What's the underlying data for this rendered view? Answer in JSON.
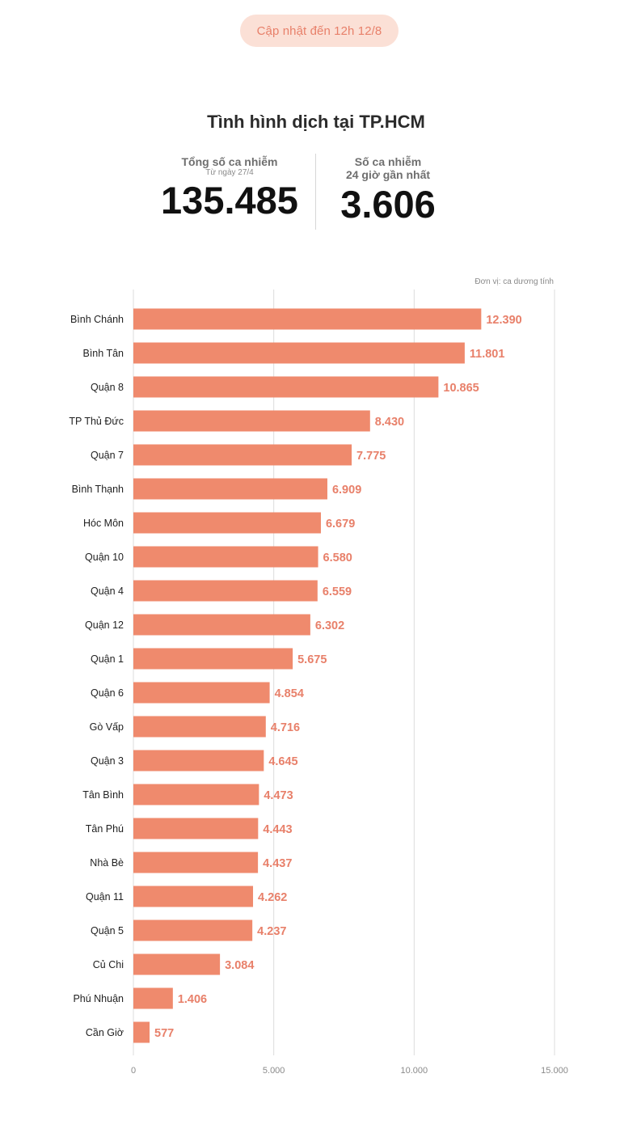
{
  "header": {
    "update_label": "Cập nhật đến  12h 12/8",
    "title": "Tình hình dịch tại TP.HCM"
  },
  "stats": {
    "total_label": "Tổng số ca nhiễm",
    "total_sub": "Từ ngày 27/4",
    "total_value": "135.485",
    "recent_label_line1": "Số ca nhiễm",
    "recent_label_line2": "24 giờ gần nhất",
    "recent_value": "3.606"
  },
  "unit_note": "Đơn vị: ca dương tính",
  "colors": {
    "bar": "#ef8a6d",
    "value_label": "#e8806a",
    "pill_bg": "#fbe0d6",
    "grid": "#dcdcdc"
  },
  "chart_data": {
    "type": "bar",
    "orientation": "horizontal",
    "categories": [
      "Bình Chánh",
      "Bình Tân",
      "Quận 8",
      "TP Thủ Đức",
      "Quận 7",
      "Bình Thạnh",
      "Hóc Môn",
      "Quận 10",
      "Quận 4",
      "Quận 12",
      "Quận 1",
      "Quận 6",
      "Gò Vấp",
      "Quận 3",
      "Tân Bình",
      "Tân Phú",
      "Nhà Bè",
      "Quận 11",
      "Quận 5",
      "Củ Chi",
      "Phú Nhuận",
      "Cần Giờ"
    ],
    "values": [
      12390,
      11801,
      10865,
      8430,
      7775,
      6909,
      6679,
      6580,
      6559,
      6302,
      5675,
      4854,
      4716,
      4645,
      4473,
      4443,
      4437,
      4262,
      4237,
      3084,
      1406,
      577
    ],
    "value_labels": [
      "12.390",
      "11.801",
      "10.865",
      "8.430",
      "7.775",
      "6.909",
      "6.679",
      "6.580",
      "6.559",
      "6.302",
      "5.675",
      "4.854",
      "4.716",
      "4.645",
      "4.473",
      "4.443",
      "4.437",
      "4.262",
      "4.237",
      "3.084",
      "1.406",
      "577"
    ],
    "xlim": [
      0,
      15000
    ],
    "xticks": [
      0,
      5000,
      10000,
      15000
    ],
    "xtick_labels": [
      "0",
      "5.000",
      "10.000",
      "15.000"
    ],
    "grid": true,
    "title": "",
    "xlabel": "",
    "ylabel": ""
  }
}
